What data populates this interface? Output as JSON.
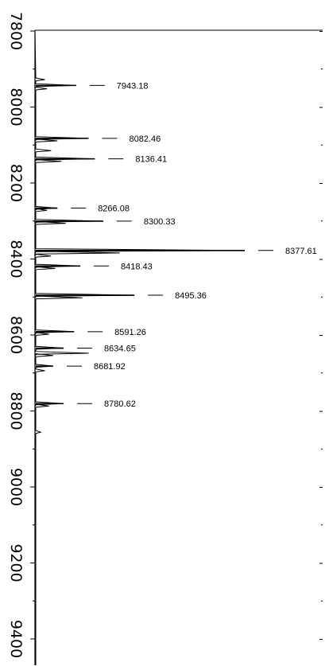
{
  "chart_data": {
    "type": "line",
    "orientation": "vertical-mass-axis",
    "title": "",
    "xlabel": "",
    "ylabel": "",
    "ylim": [
      7800,
      9470
    ],
    "y_ticks": [
      7800,
      8000,
      8200,
      8400,
      8600,
      8800,
      9000,
      9200,
      9400
    ],
    "tick_labels": [
      "7800",
      "8000",
      "8200",
      "8400",
      "8600",
      "8800",
      "9000",
      "9200",
      "9400"
    ],
    "grid": false,
    "peaks": [
      {
        "mass": 7943.18,
        "label": "7943.18",
        "intensity": 0.19
      },
      {
        "mass": 8082.46,
        "label": "8082.46",
        "intensity": 0.25
      },
      {
        "mass": 8136.41,
        "label": "8136.41",
        "intensity": 0.28
      },
      {
        "mass": 8266.08,
        "label": "8266.08",
        "intensity": 0.1
      },
      {
        "mass": 8300.33,
        "label": "8300.33",
        "intensity": 0.32
      },
      {
        "mass": 8377.61,
        "label": "8377.61",
        "intensity": 1.0
      },
      {
        "mass": 8418.43,
        "label": "8418.43",
        "intensity": 0.21
      },
      {
        "mass": 8495.36,
        "label": "8495.36",
        "intensity": 0.47
      },
      {
        "mass": 8591.26,
        "label": "8591.26",
        "intensity": 0.18
      },
      {
        "mass": 8634.65,
        "label": "8634.65",
        "intensity": 0.13
      },
      {
        "mass": 8681.92,
        "label": "8681.92",
        "intensity": 0.08
      },
      {
        "mass": 8780.62,
        "label": "8780.62",
        "intensity": 0.13
      }
    ],
    "minor_peaks": [
      {
        "mass": 7928,
        "intensity": 0.04
      },
      {
        "mass": 7952,
        "intensity": 0.05
      },
      {
        "mass": 8089,
        "intensity": 0.1
      },
      {
        "mass": 8115,
        "intensity": 0.07
      },
      {
        "mass": 8143,
        "intensity": 0.12
      },
      {
        "mass": 8272,
        "intensity": 0.05
      },
      {
        "mass": 8306,
        "intensity": 0.14
      },
      {
        "mass": 8384,
        "intensity": 0.4
      },
      {
        "mass": 8392,
        "intensity": 0.07
      },
      {
        "mass": 8425,
        "intensity": 0.09
      },
      {
        "mass": 8502,
        "intensity": 0.22
      },
      {
        "mass": 8598,
        "intensity": 0.06
      },
      {
        "mass": 8648,
        "intensity": 0.25
      },
      {
        "mass": 8654,
        "intensity": 0.08
      },
      {
        "mass": 8694,
        "intensity": 0.04
      },
      {
        "mass": 8787,
        "intensity": 0.06
      },
      {
        "mass": 8856,
        "intensity": 0.02
      }
    ]
  }
}
